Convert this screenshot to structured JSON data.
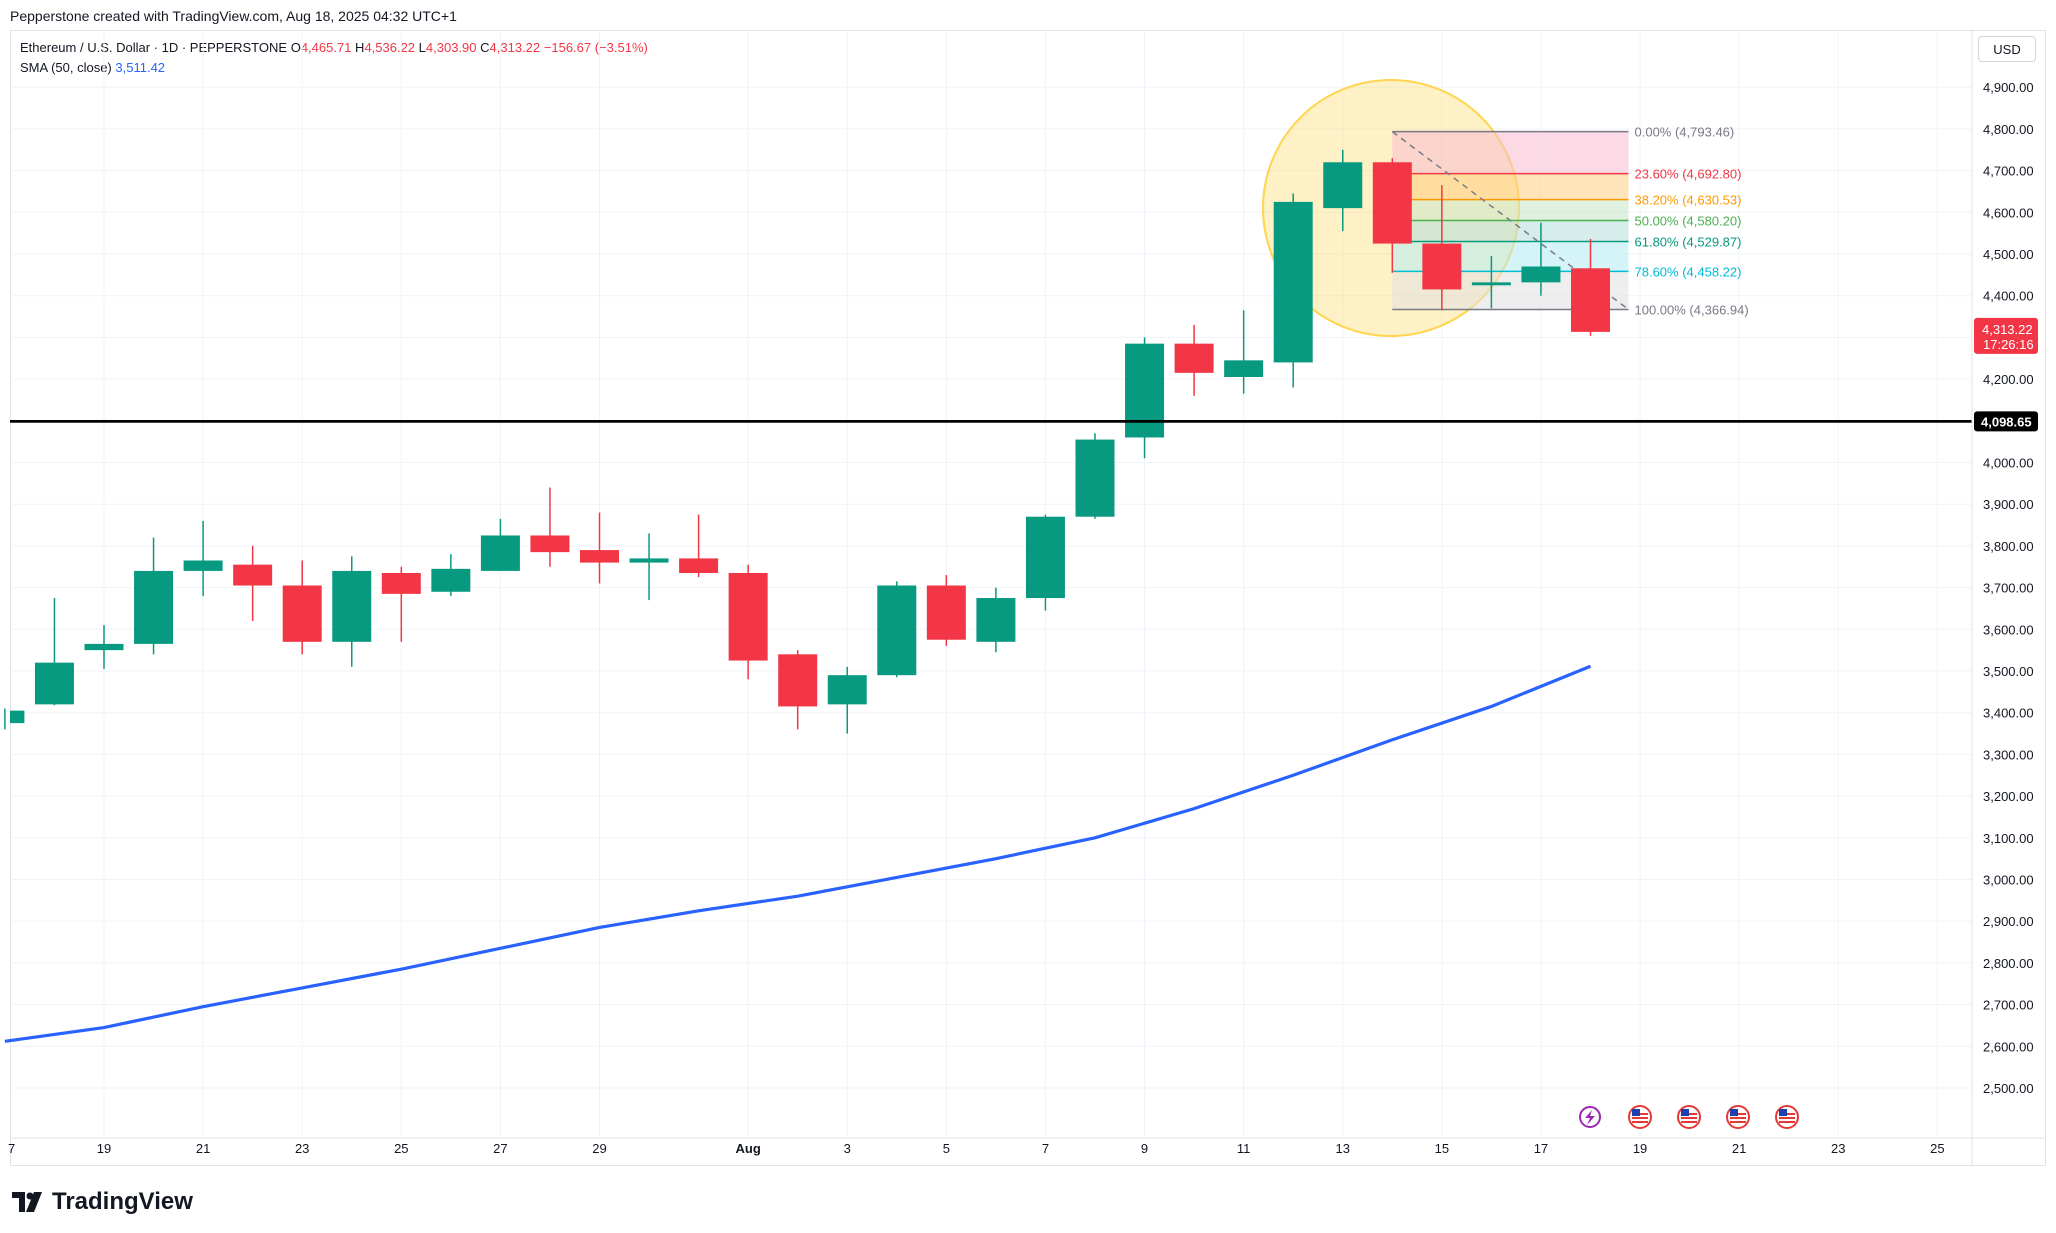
{
  "header": {
    "credit": "Pepperstone created with TradingView.com, Aug 18, 2025 04:32 UTC+1"
  },
  "legend": {
    "symbol": "Ethereum / U.S. Dollar · 1D · PEPPERSTONE",
    "open_label": "O",
    "open": "4,465.71",
    "high_label": "H",
    "high": "4,536.22",
    "low_label": "L",
    "low": "4,303.90",
    "close_label": "C",
    "close": "4,313.22",
    "change": "−156.67 (−3.51%)",
    "sma_label": "SMA (50, close)",
    "sma_value": "3,511.42"
  },
  "currency": "USD",
  "price_scale": {
    "last_price": "4,313.22",
    "countdown": "17:26:16",
    "hline_price": "4,098.65"
  },
  "footer": {
    "logo_text": "TradingView"
  },
  "icons": [
    "lightning-event-icon",
    "us-flag-event-icon",
    "us-flag-event-icon",
    "us-flag-event-icon",
    "us-flag-event-icon"
  ],
  "colors": {
    "up": "#089981",
    "down": "#f23645",
    "sma": "#2962ff",
    "hline": "#000000",
    "highlight": "#ffd54f"
  },
  "chart_data": {
    "type": "candlestick",
    "ylim": [
      2450,
      4950
    ],
    "y_ticks": [
      2500,
      2600,
      2700,
      2800,
      2900,
      3000,
      3100,
      3200,
      3300,
      3400,
      3500,
      3600,
      3700,
      3800,
      3900,
      4000,
      4100,
      4200,
      4300,
      4400,
      4500,
      4600,
      4700,
      4800,
      4900
    ],
    "y_tick_labels": [
      "2,500.00",
      "2,600.00",
      "2,700.00",
      "2,800.00",
      "2,900.00",
      "3,000.00",
      "3,100.00",
      "3,200.00",
      "3,300.00",
      "3,400.00",
      "3,500.00",
      "3,600.00",
      "3,700.00",
      "3,800.00",
      "3,900.00",
      "4,000.00",
      "4,100.00",
      "4,200.00",
      "4,300.00",
      "4,400.00",
      "4,500.00",
      "4,600.00",
      "4,700.00",
      "4,800.00",
      "4,900.00"
    ],
    "x_ticks": [
      {
        "day": 0,
        "label": "19"
      },
      {
        "day": 2,
        "label": "21"
      },
      {
        "day": 4,
        "label": "23"
      },
      {
        "day": 6,
        "label": "25"
      },
      {
        "day": 8,
        "label": "27"
      },
      {
        "day": 10,
        "label": "29"
      },
      {
        "day": 13,
        "label": "Aug"
      },
      {
        "day": 15,
        "label": "3"
      },
      {
        "day": 17,
        "label": "5"
      },
      {
        "day": 19,
        "label": "7"
      },
      {
        "day": 21,
        "label": "9"
      },
      {
        "day": 23,
        "label": "11"
      },
      {
        "day": 25,
        "label": "13"
      },
      {
        "day": 27,
        "label": "15"
      },
      {
        "day": 29,
        "label": "17"
      },
      {
        "day": 31,
        "label": "19"
      },
      {
        "day": 33,
        "label": "21"
      },
      {
        "day": 35,
        "label": "23"
      },
      {
        "day": 37,
        "label": "25"
      }
    ],
    "candles": [
      {
        "day": -2,
        "o": 3375,
        "h": 3410,
        "l": 3360,
        "c": 3405
      },
      {
        "day": -1,
        "o": 3420,
        "h": 3675,
        "l": 3418,
        "c": 3520
      },
      {
        "day": 0,
        "o": 3550,
        "h": 3610,
        "l": 3505,
        "c": 3565
      },
      {
        "day": 1,
        "o": 3565,
        "h": 3820,
        "l": 3540,
        "c": 3740
      },
      {
        "day": 2,
        "o": 3740,
        "h": 3860,
        "l": 3680,
        "c": 3765
      },
      {
        "day": 3,
        "o": 3755,
        "h": 3800,
        "l": 3620,
        "c": 3705
      },
      {
        "day": 4,
        "o": 3705,
        "h": 3765,
        "l": 3540,
        "c": 3570
      },
      {
        "day": 5,
        "o": 3570,
        "h": 3775,
        "l": 3510,
        "c": 3740
      },
      {
        "day": 6,
        "o": 3735,
        "h": 3750,
        "l": 3570,
        "c": 3685
      },
      {
        "day": 7,
        "o": 3690,
        "h": 3780,
        "l": 3680,
        "c": 3745
      },
      {
        "day": 8,
        "o": 3740,
        "h": 3865,
        "l": 3740,
        "c": 3825
      },
      {
        "day": 9,
        "o": 3825,
        "h": 3940,
        "l": 3750,
        "c": 3785
      },
      {
        "day": 10,
        "o": 3790,
        "h": 3880,
        "l": 3710,
        "c": 3760
      },
      {
        "day": 11,
        "o": 3760,
        "h": 3830,
        "l": 3670,
        "c": 3770
      },
      {
        "day": 12,
        "o": 3770,
        "h": 3875,
        "l": 3725,
        "c": 3735
      },
      {
        "day": 13,
        "o": 3735,
        "h": 3755,
        "l": 3480,
        "c": 3525
      },
      {
        "day": 14,
        "o": 3540,
        "h": 3550,
        "l": 3360,
        "c": 3415
      },
      {
        "day": 15,
        "o": 3420,
        "h": 3510,
        "l": 3350,
        "c": 3490
      },
      {
        "day": 16,
        "o": 3490,
        "h": 3715,
        "l": 3485,
        "c": 3705
      },
      {
        "day": 17,
        "o": 3705,
        "h": 3730,
        "l": 3560,
        "c": 3575
      },
      {
        "day": 18,
        "o": 3570,
        "h": 3700,
        "l": 3545,
        "c": 3675
      },
      {
        "day": 19,
        "o": 3675,
        "h": 3875,
        "l": 3645,
        "c": 3870
      },
      {
        "day": 20,
        "o": 3870,
        "h": 4070,
        "l": 3865,
        "c": 4055
      },
      {
        "day": 21,
        "o": 4060,
        "h": 4300,
        "l": 4010,
        "c": 4285
      },
      {
        "day": 22,
        "o": 4285,
        "h": 4330,
        "l": 4160,
        "c": 4215
      },
      {
        "day": 23,
        "o": 4205,
        "h": 4365,
        "l": 4165,
        "c": 4245
      },
      {
        "day": 24,
        "o": 4240,
        "h": 4645,
        "l": 4180,
        "c": 4625
      },
      {
        "day": 25,
        "o": 4610,
        "h": 4750,
        "l": 4555,
        "c": 4720
      },
      {
        "day": 26,
        "o": 4720,
        "h": 4730,
        "l": 4455,
        "c": 4525
      },
      {
        "day": 27,
        "o": 4525,
        "h": 4665,
        "l": 4365,
        "c": 4415
      },
      {
        "day": 28,
        "o": 4425,
        "h": 4495,
        "l": 4370,
        "c": 4432
      },
      {
        "day": 29,
        "o": 4432,
        "h": 4575,
        "l": 4400,
        "c": 4470
      },
      {
        "day": 30,
        "o": 4465.71,
        "h": 4536.22,
        "l": 4303.9,
        "c": 4313.22
      }
    ],
    "sma": {
      "name": "SMA (50, close)",
      "points": [
        [
          -2,
          2612
        ],
        [
          0,
          2645
        ],
        [
          2,
          2695
        ],
        [
          4,
          2740
        ],
        [
          6,
          2785
        ],
        [
          8,
          2835
        ],
        [
          10,
          2885
        ],
        [
          12,
          2925
        ],
        [
          14,
          2960
        ],
        [
          16,
          3005
        ],
        [
          18,
          3050
        ],
        [
          20,
          3100
        ],
        [
          22,
          3170
        ],
        [
          24,
          3250
        ],
        [
          26,
          3335
        ],
        [
          28,
          3415
        ],
        [
          30,
          3511.42
        ]
      ]
    },
    "horizontal_line": 4098.65,
    "fibonacci": {
      "start_day": 26,
      "end_day": 30,
      "levels": [
        {
          "ratio": "0.00%",
          "price": 4793.46,
          "label": "0.00% (4,793.46)",
          "color": "#787b86",
          "fill": "#f8bbd0"
        },
        {
          "ratio": "23.60%",
          "price": 4692.8,
          "label": "23.60% (4,692.80)",
          "color": "#f23645",
          "fill": "#ffcc80"
        },
        {
          "ratio": "38.20%",
          "price": 4630.53,
          "label": "38.20% (4,630.53)",
          "color": "#ff9800",
          "fill": "#c8e6c9"
        },
        {
          "ratio": "50.00%",
          "price": 4580.2,
          "label": "50.00% (4,580.20)",
          "color": "#4caf50",
          "fill": "#b2dfdb"
        },
        {
          "ratio": "61.80%",
          "price": 4529.87,
          "label": "61.80% (4,529.87)",
          "color": "#089981",
          "fill": "#b2ebf2"
        },
        {
          "ratio": "78.60%",
          "price": 4458.22,
          "label": "78.60% (4,458.22)",
          "color": "#00bcd4",
          "fill": "#e0e0e0"
        },
        {
          "ratio": "100.00%",
          "price": 4366.94,
          "label": "100.00% (4,366.94)",
          "color": "#787b86",
          "fill": null
        }
      ]
    }
  }
}
